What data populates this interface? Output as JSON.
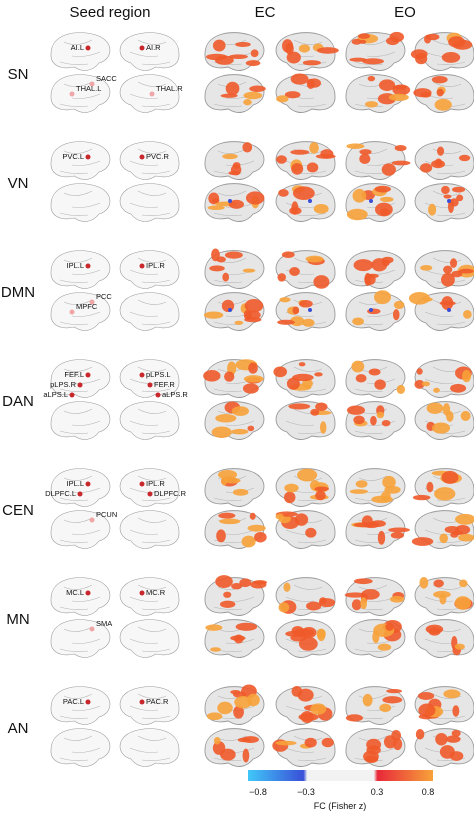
{
  "headers": {
    "seed": "Seed region",
    "ec": "EC",
    "eo": "EO"
  },
  "colors": {
    "brain_fill": "#e6e6e6",
    "brain_stroke": "#9a9a9a",
    "outline_brain_fill": "#f7f7f7",
    "seed_dot": "#c8282c",
    "seed_dot_faint": "#f0a6a6",
    "activation_mid": "#ef5a2a",
    "activation_high": "#f7a23a",
    "activation_low": "#ffffff",
    "negative_blue": "#3a4fd8"
  },
  "networks": [
    {
      "name": "SN",
      "seeds_top": [
        {
          "text": "AI.L"
        },
        {
          "text": "AI.R"
        }
      ],
      "seeds_bottom": [
        {
          "text": "SACC"
        },
        {
          "text": "THAL.L"
        },
        {
          "text": "THAL.R"
        }
      ],
      "blue_spots": false
    },
    {
      "name": "VN",
      "seeds_top": [
        {
          "text": "PVC.L"
        },
        {
          "text": "PVC.R"
        }
      ],
      "seeds_bottom": [],
      "blue_spots": true
    },
    {
      "name": "DMN",
      "seeds_top": [
        {
          "text": "IPL.L"
        },
        {
          "text": "IPL.R"
        }
      ],
      "seeds_bottom": [
        {
          "text": "PCC"
        },
        {
          "text": "MPFC"
        }
      ],
      "blue_spots": true
    },
    {
      "name": "DAN",
      "seeds_top": [
        {
          "text": "FEF.L"
        },
        {
          "text": "pLPS.L"
        },
        {
          "text": "pLPS.R"
        },
        {
          "text": "FEF.R"
        },
        {
          "text": "aLPS.L"
        },
        {
          "text": "aLPS.R"
        }
      ],
      "seeds_bottom": [],
      "blue_spots": false
    },
    {
      "name": "CEN",
      "seeds_top": [
        {
          "text": "IPL.L"
        },
        {
          "text": "IPL.R"
        },
        {
          "text": "DLPFC.L"
        },
        {
          "text": "DLPFC.R"
        }
      ],
      "seeds_bottom": [
        {
          "text": "PCUN"
        }
      ],
      "blue_spots": false
    },
    {
      "name": "MN",
      "seeds_top": [
        {
          "text": "MC.L"
        },
        {
          "text": "MC.R"
        }
      ],
      "seeds_bottom": [
        {
          "text": "SMA"
        }
      ],
      "blue_spots": false
    },
    {
      "name": "AN",
      "seeds_top": [
        {
          "text": "PAC.L"
        },
        {
          "text": "PAC.R"
        }
      ],
      "seeds_bottom": [],
      "blue_spots": false
    }
  ],
  "colorbar": {
    "ticks": [
      "−0.8",
      "−0.3",
      "0.3",
      "0.8"
    ],
    "title": "FC (Fisher z)",
    "stops": [
      "#40c8f8",
      "#3a4fd8",
      "#f2f2f2",
      "#f2f2f2",
      "#e8283a",
      "#f7a23a"
    ]
  }
}
